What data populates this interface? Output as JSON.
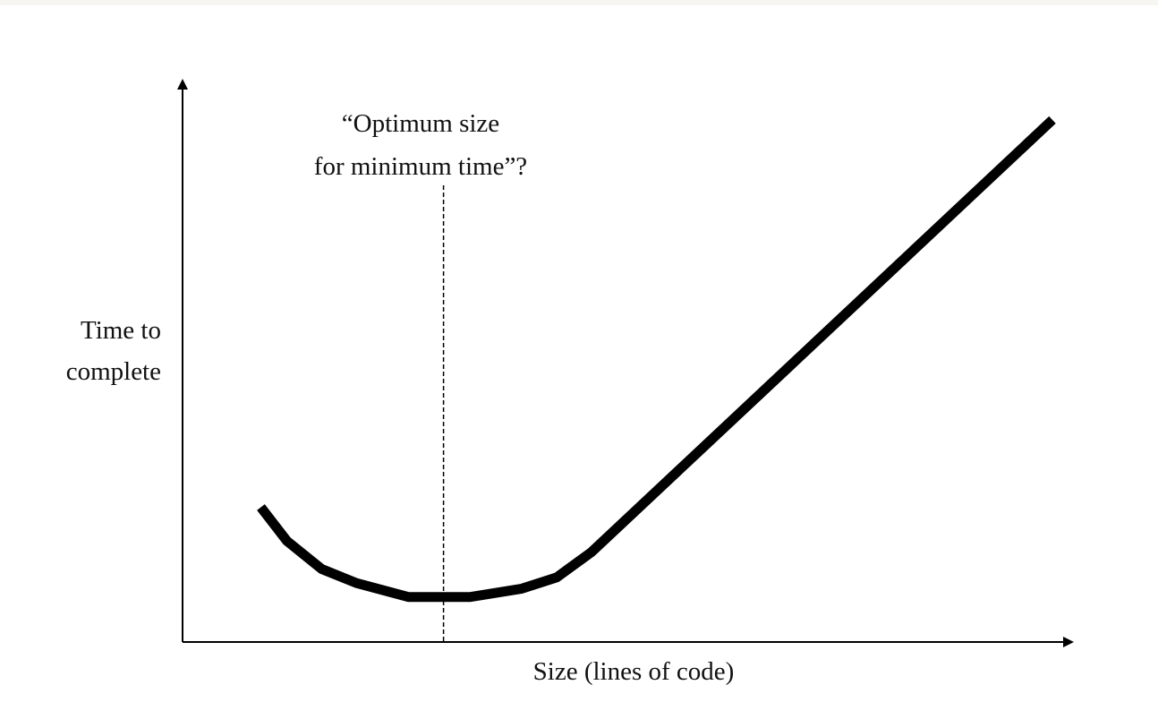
{
  "colors": {
    "background": "#ffffff",
    "curve": "#000000",
    "axes": "#000000",
    "reference_line": "#000000"
  },
  "chart_data": {
    "type": "line",
    "title": "",
    "xlabel": "Size (lines of code)",
    "ylabel_lines": [
      "Time to",
      "complete"
    ],
    "ylabel": "Time to complete",
    "xlim": [
      0,
      100
    ],
    "ylim": [
      0,
      100
    ],
    "grid": false,
    "legend": "none",
    "axis_ticks": false,
    "series": [
      {
        "values_x": [
          9,
          12,
          16,
          20,
          26,
          33,
          39,
          43,
          47,
          100
        ],
        "values_y": [
          24,
          18,
          13,
          10.5,
          8,
          8,
          9.5,
          11.5,
          16,
          93
        ],
        "style": "thick solid"
      }
    ],
    "annotation": {
      "lines": [
        "“Optimum size",
        "for minimum time”?"
      ],
      "x": 30,
      "style": "dashed vertical line"
    }
  }
}
